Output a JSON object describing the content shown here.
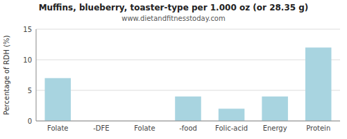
{
  "chart_data": {
    "type": "bar",
    "title": "Muffins, blueberry, toaster-type per 1.000 oz (or 28.35 g)",
    "subtitle": "www.dietandfitnesstoday.com",
    "categories": [
      "Folate",
      "-DFE",
      "Folate",
      "-food",
      "Folic-acid",
      "Energy",
      "Protein"
    ],
    "values": [
      7.0,
      0.0,
      0.0,
      4.0,
      2.0,
      4.0,
      12.0
    ],
    "color": "#a8d4e0",
    "ylabel": "Percentage of RDH (%)",
    "ylim": [
      0,
      15
    ],
    "yticks": [
      0,
      5,
      10,
      15
    ],
    "grid": true
  }
}
